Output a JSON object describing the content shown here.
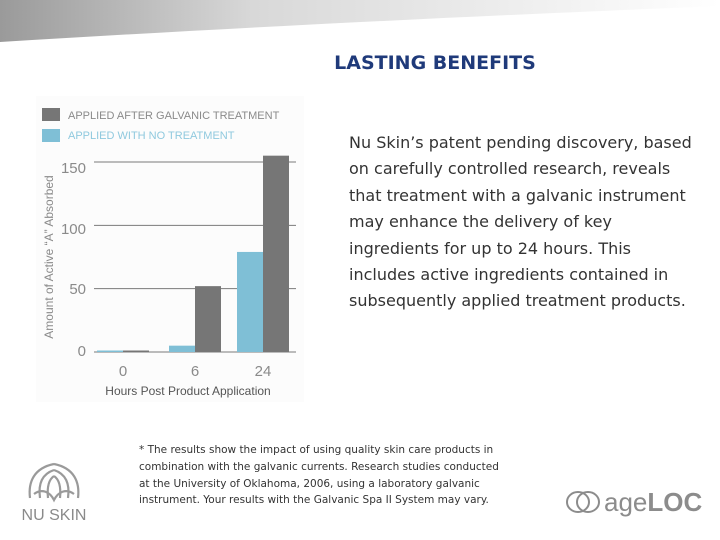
{
  "slide": {
    "title": "LASTING BENEFITS",
    "body": "Nu Skin’s patent pending discovery, based on carefully controlled research, reveals that treatment with a galvanic instrument may enhance the delivery of key ingredients for up to 24 hours. This includes active ingredients contained in subsequently applied treatment products.",
    "footnote": "* The results show the impact of using quality skin care products in combination with the galvanic currents. Research studies conducted at the University of Oklahoma, 2006, using a laboratory galvanic instrument. Your results with the Galvanic Spa II System may vary.",
    "logos": {
      "nuskin_text": "NU SKIN",
      "ageloc_age": "age",
      "ageloc_loc": "LOC"
    }
  },
  "chart_data": {
    "type": "bar",
    "categories": [
      "0",
      "6",
      "24"
    ],
    "series": [
      {
        "name": "APPLIED WITH NO TREATMENT",
        "values": [
          1,
          5,
          79
        ],
        "color": "#7fbfd6"
      },
      {
        "name": "APPLIED AFTER GALVANIC TREATMENT",
        "values": [
          1,
          52,
          155
        ],
        "color": "#767676"
      }
    ],
    "ylim": [
      0,
      160
    ],
    "yticks": [
      "0",
      "50",
      "100",
      "150"
    ],
    "ytick_values": [
      0,
      50,
      100,
      150
    ],
    "xlabel": "Hours Post Product Application",
    "ylabel": "Amount of Active “A” Absorbed",
    "legend_position": "top-left",
    "grid": true
  },
  "colors": {
    "title": "#1f3a7a",
    "gridline": "#7a7a7a",
    "axis_text": "#8a8a8a"
  }
}
